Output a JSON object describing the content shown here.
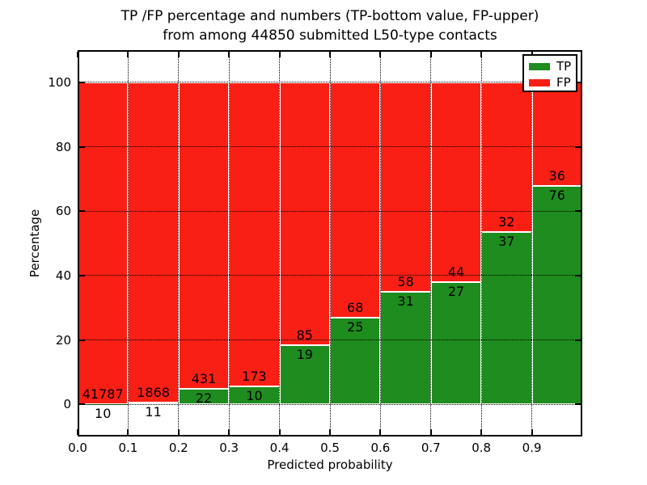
{
  "figure": {
    "title_line1": "TP /FP percentage and numbers (TP-bottom value, FP-upper)",
    "title_line2": "from among 44850 submitted L50-type contacts"
  },
  "chart_data": {
    "type": "bar",
    "stacked": true,
    "title": "TP /FP percentage and numbers (TP-bottom value, FP-upper) from among 44850 submitted L50-type contacts",
    "xlabel": "Predicted probability",
    "ylabel": "Percentage",
    "xlim": [
      0.0,
      1.0
    ],
    "ylim": [
      -10,
      110
    ],
    "x_tick_values": [
      0.0,
      0.1,
      0.2,
      0.3,
      0.4,
      0.5,
      0.6,
      0.7,
      0.8,
      0.9
    ],
    "x_tick_labels": [
      "0.0",
      "0.1",
      "0.2",
      "0.3",
      "0.4",
      "0.5",
      "0.6",
      "0.7",
      "0.8",
      "0.9"
    ],
    "y_tick_values": [
      0,
      20,
      40,
      60,
      80,
      100
    ],
    "y_tick_labels": [
      "0",
      "20",
      "40",
      "60",
      "80",
      "100"
    ],
    "grid": "dotted",
    "bin_width": 0.1,
    "bin_starts": [
      0.0,
      0.1,
      0.2,
      0.3,
      0.4,
      0.5,
      0.6,
      0.7,
      0.8,
      0.9
    ],
    "total_submitted": 44850,
    "series": [
      {
        "name": "TP",
        "color": "#1e8c1e",
        "counts": [
          10,
          11,
          22,
          10,
          19,
          25,
          31,
          27,
          37,
          76
        ],
        "percent": [
          0.02,
          0.59,
          4.86,
          5.46,
          18.27,
          26.88,
          34.83,
          38.03,
          53.62,
          67.86
        ]
      },
      {
        "name": "FP",
        "color": "#fa1f14",
        "counts": [
          41787,
          1868,
          431,
          173,
          85,
          68,
          58,
          44,
          32,
          36
        ],
        "percent": [
          99.98,
          99.41,
          95.14,
          94.54,
          81.73,
          73.12,
          65.17,
          61.97,
          46.38,
          32.14
        ]
      }
    ],
    "legend": {
      "position": "upper-right",
      "entries": [
        {
          "label": "TP",
          "color": "#1e8c1e"
        },
        {
          "label": "FP",
          "color": "#fa1f14"
        }
      ]
    }
  }
}
